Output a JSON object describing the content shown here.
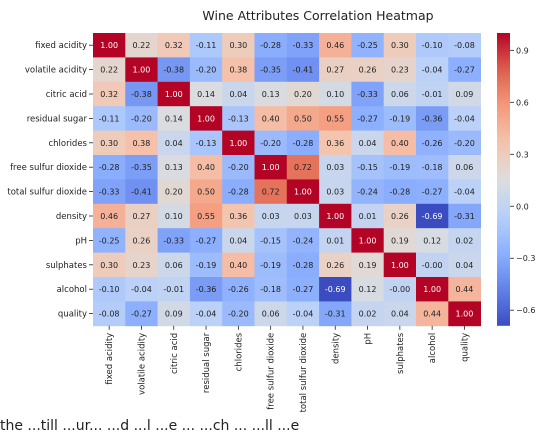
{
  "caption": "the ...till ...ur... ...d ...l ...e ... ...ch ... ...ll ...e",
  "chart_data": {
    "type": "heatmap",
    "title": "Wine Attributes Correlation Heatmap",
    "labels": [
      "fixed acidity",
      "volatile acidity",
      "citric acid",
      "residual sugar",
      "chlorides",
      "free sulfur dioxide",
      "total sulfur dioxide",
      "density",
      "pH",
      "sulphates",
      "alcohol",
      "quality"
    ],
    "values": [
      [
        1.0,
        0.22,
        0.32,
        -0.11,
        0.3,
        -0.28,
        -0.33,
        0.46,
        -0.25,
        0.3,
        -0.1,
        -0.08
      ],
      [
        0.22,
        1.0,
        -0.38,
        -0.2,
        0.38,
        -0.35,
        -0.41,
        0.27,
        0.26,
        0.23,
        -0.04,
        -0.27
      ],
      [
        0.32,
        -0.38,
        1.0,
        0.14,
        0.04,
        0.13,
        0.2,
        0.1,
        -0.33,
        0.06,
        -0.01,
        0.09
      ],
      [
        -0.11,
        -0.2,
        0.14,
        1.0,
        -0.13,
        0.4,
        0.5,
        0.55,
        -0.27,
        -0.19,
        -0.36,
        -0.04
      ],
      [
        0.3,
        0.38,
        0.04,
        -0.13,
        1.0,
        -0.2,
        -0.28,
        0.36,
        0.04,
        0.4,
        -0.26,
        -0.2
      ],
      [
        -0.28,
        -0.35,
        0.13,
        0.4,
        -0.2,
        1.0,
        0.72,
        0.03,
        -0.15,
        -0.19,
        -0.18,
        0.06
      ],
      [
        -0.33,
        -0.41,
        0.2,
        0.5,
        -0.28,
        0.72,
        1.0,
        0.03,
        -0.24,
        -0.28,
        -0.27,
        -0.04
      ],
      [
        0.46,
        0.27,
        0.1,
        0.55,
        0.36,
        0.03,
        0.03,
        1.0,
        0.01,
        0.26,
        -0.69,
        -0.31
      ],
      [
        -0.25,
        0.26,
        -0.33,
        -0.27,
        0.04,
        -0.15,
        -0.24,
        0.01,
        1.0,
        0.19,
        0.12,
        0.02
      ],
      [
        0.3,
        0.23,
        0.06,
        -0.19,
        0.4,
        -0.19,
        -0.28,
        0.26,
        0.19,
        1.0,
        -0.0,
        0.04
      ],
      [
        -0.1,
        -0.04,
        -0.01,
        -0.36,
        -0.26,
        -0.18,
        -0.27,
        -0.69,
        0.12,
        -0.0,
        1.0,
        0.44
      ],
      [
        -0.08,
        -0.27,
        0.09,
        -0.04,
        -0.2,
        0.06,
        -0.04,
        -0.31,
        0.02,
        0.04,
        0.44,
        1.0
      ]
    ],
    "colorbar": {
      "range": [
        -0.69,
        1.0
      ],
      "ticks": [
        -0.6,
        -0.3,
        0.0,
        0.3,
        0.6,
        0.9
      ],
      "tick_labels": [
        "−0.6",
        "−0.3",
        "0.0",
        "0.3",
        "0.6",
        "0.9"
      ],
      "colormap": "coolwarm"
    },
    "annotate": true,
    "grid": false
  }
}
